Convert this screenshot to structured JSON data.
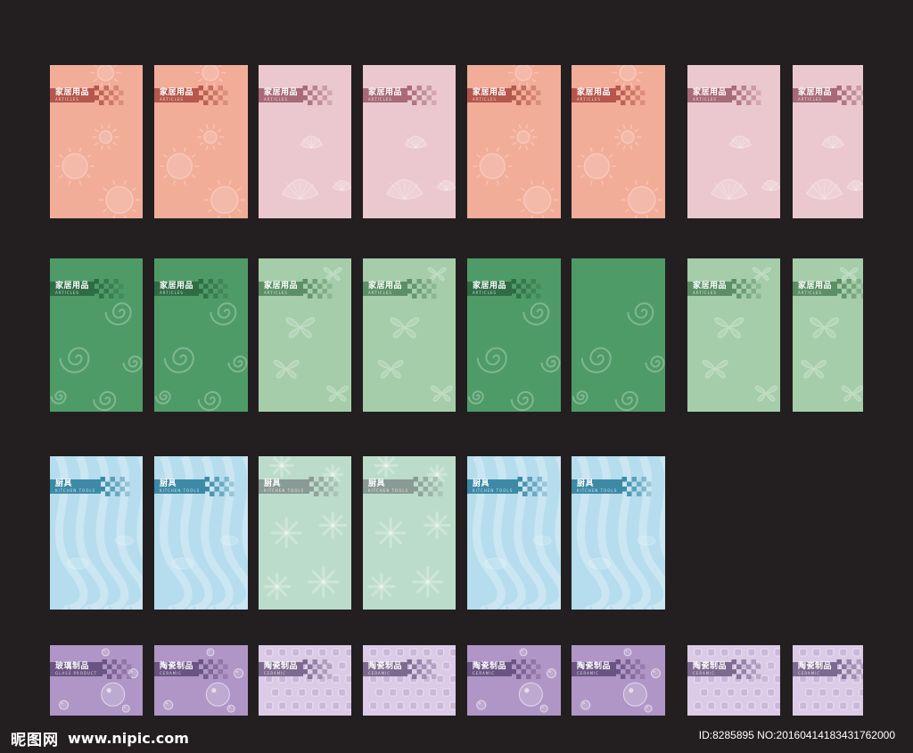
{
  "rows": [
    {
      "cards": [
        {
          "theme": "salmon",
          "title": "家居用品",
          "sub": "ARTICLES"
        },
        {
          "theme": "salmon",
          "title": "家居用品",
          "sub": "ARTICLES"
        },
        {
          "theme": "pink",
          "title": "家居用品",
          "sub": "ARTICLES"
        },
        {
          "theme": "pink",
          "title": "家居用品",
          "sub": "ARTICLES"
        },
        {
          "theme": "salmon",
          "title": "家居用品",
          "sub": "ARTICLES"
        },
        {
          "theme": "salmon",
          "title": "家居用品",
          "sub": "ARTICLES"
        },
        {
          "theme": "pink",
          "title": "家居用品",
          "sub": "ARTICLES"
        },
        {
          "theme": "pink",
          "title": "家居用品",
          "sub": "ARTICLES"
        }
      ]
    },
    {
      "cards": [
        {
          "theme": "green",
          "title": "家居用品",
          "sub": "ARTICLES"
        },
        {
          "theme": "green",
          "title": "家居用品",
          "sub": "ARTICLES"
        },
        {
          "theme": "mint",
          "title": "家居用品",
          "sub": "ARTICLES"
        },
        {
          "theme": "mint",
          "title": "家居用品",
          "sub": "ARTICLES"
        },
        {
          "theme": "green",
          "title": "家居用品",
          "sub": "ARTICLES"
        },
        {
          "theme": "green",
          "title": "",
          "sub": ""
        },
        {
          "theme": "mint",
          "title": "家居用品",
          "sub": "ARTICLES"
        },
        {
          "theme": "mint",
          "title": "家居用品",
          "sub": "ARTICLES"
        }
      ]
    },
    {
      "cards": [
        {
          "theme": "blue",
          "title": "厨具",
          "sub": "KITCHEN TOOLS"
        },
        {
          "theme": "blue",
          "title": "厨具",
          "sub": "KITCHEN TOOLS"
        },
        {
          "theme": "seafoam",
          "title": "厨具",
          "sub": "KITCHEN TOOLS"
        },
        {
          "theme": "seafoam",
          "title": "厨具",
          "sub": "KITCHEN TOOLS"
        },
        {
          "theme": "blue",
          "title": "厨具",
          "sub": "KITCHEN TOOLS"
        },
        {
          "theme": "blue",
          "title": "厨具",
          "sub": "KITCHEN TOOLS"
        }
      ]
    },
    {
      "cards": [
        {
          "theme": "purple",
          "title": "玻璃制品",
          "sub": "GLASS PRODUCT"
        },
        {
          "theme": "purple",
          "title": "陶瓷制品",
          "sub": "CERAMIC"
        },
        {
          "theme": "lilac",
          "title": "陶瓷制品",
          "sub": "CERAMIC"
        },
        {
          "theme": "lilac",
          "title": "陶瓷制品",
          "sub": "CERAMIC"
        },
        {
          "theme": "purple",
          "title": "陶瓷制品",
          "sub": "CERAMIC"
        },
        {
          "theme": "purple",
          "title": "陶瓷制品",
          "sub": "CERAMIC"
        },
        {
          "theme": "lilac",
          "title": "陶瓷制品",
          "sub": "CERAMIC"
        },
        {
          "theme": "lilac",
          "title": "陶瓷制品",
          "sub": "CERAMIC"
        }
      ]
    }
  ],
  "themes": {
    "salmon": {
      "bg": "#f2ad99",
      "band": "#b5574c",
      "motif": "sun"
    },
    "pink": {
      "bg": "#ebc8cf",
      "band": "#a86a78",
      "motif": "shell"
    },
    "green": {
      "bg": "#4f9b67",
      "band": "#2f6c44",
      "motif": "swirl"
    },
    "mint": {
      "bg": "#a5cda9",
      "band": "#5c8f66",
      "motif": "butterfly"
    },
    "blue": {
      "bg": "#b6dded",
      "band": "#3d8aa6",
      "motif": "wave"
    },
    "seafoam": {
      "bg": "#bcdccb",
      "band": "#8a9a95",
      "motif": "snow"
    },
    "purple": {
      "bg": "#b096c6",
      "band": "#6a5483",
      "motif": "bubble"
    },
    "lilac": {
      "bg": "#dccbe6",
      "band": "#7d6a8e",
      "motif": "dots"
    }
  },
  "footer": {
    "brand": "昵图网",
    "url": "www.nipic.com",
    "id": "ID:8285895 NO:20160414183431762000"
  }
}
